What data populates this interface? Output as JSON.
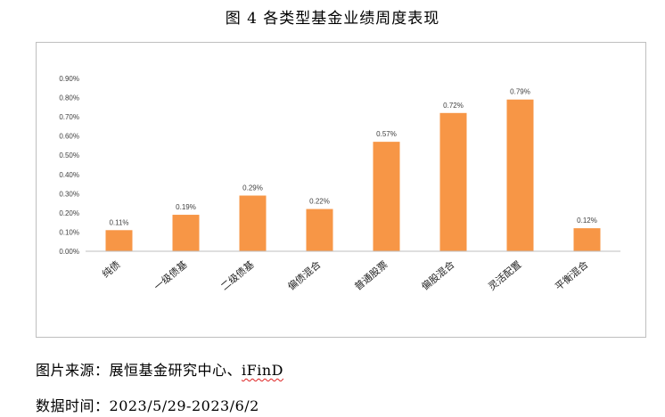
{
  "figure": {
    "title": "图 4 各类型基金业绩周度表现"
  },
  "chart_data": {
    "type": "bar",
    "title": "",
    "xlabel": "",
    "ylabel": "",
    "categories": [
      "纯债",
      "一级债基",
      "二级债基",
      "偏债混合",
      "普通股票",
      "偏股混合",
      "灵活配置",
      "平衡混合"
    ],
    "values": [
      0.11,
      0.19,
      0.29,
      0.22,
      0.57,
      0.72,
      0.79,
      0.12
    ],
    "data_labels": [
      "0.11%",
      "0.19%",
      "0.29%",
      "0.22%",
      "0.57%",
      "0.72%",
      "0.79%",
      "0.12%"
    ],
    "ylim": [
      0,
      0.9
    ],
    "yticks": [
      0,
      0.1,
      0.2,
      0.3,
      0.4,
      0.5,
      0.6,
      0.7,
      0.8,
      0.9
    ],
    "ytick_labels": [
      "0.00%",
      "0.10%",
      "0.20%",
      "0.30%",
      "0.40%",
      "0.50%",
      "0.60%",
      "0.70%",
      "0.80%",
      "0.90%"
    ],
    "grid": false,
    "legend": "none",
    "bar_color": "#f79646",
    "axis_color": "#bfbfbf"
  },
  "footer": {
    "source_label": "图片来源：",
    "source_text": "展恒基金研究中心、",
    "source_brand": "iFinD",
    "date_label": "数据时间：",
    "date_range": "2023/5/29-2023/6/2"
  }
}
